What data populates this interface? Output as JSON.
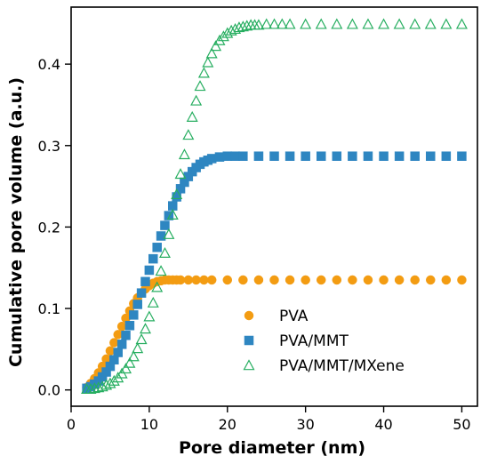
{
  "chart_data": {
    "type": "scatter",
    "title": "",
    "xlabel": "Pore diameter (nm)",
    "ylabel": "Cumulative pore volume (a.u.)",
    "xlim": [
      0,
      52
    ],
    "ylim": [
      -0.02,
      0.47
    ],
    "xticks": [
      0,
      10,
      20,
      30,
      40,
      50
    ],
    "yticks": [
      0.0,
      0.1,
      0.2,
      0.3,
      0.4
    ],
    "xtick_labels": [
      "0",
      "10",
      "20",
      "30",
      "40",
      "50"
    ],
    "ytick_labels": [
      "0.0",
      "0.1",
      "0.2",
      "0.3",
      "0.4"
    ],
    "grid": false,
    "legend_position": "lower-right",
    "series": [
      {
        "name": "PVA",
        "marker": "circle",
        "color": "#F39C12",
        "x": [
          2,
          2.5,
          3,
          3.5,
          4,
          4.5,
          5,
          5.5,
          6,
          6.5,
          7,
          7.5,
          8,
          8.5,
          9,
          9.5,
          10,
          10.5,
          11,
          11.5,
          12,
          12.5,
          13,
          13.5,
          14,
          15,
          16,
          17,
          18,
          20,
          22,
          24,
          26,
          28,
          30,
          32,
          34,
          36,
          38,
          40,
          42,
          44,
          46,
          48,
          50
        ],
        "y": [
          0.003,
          0.008,
          0.014,
          0.021,
          0.029,
          0.038,
          0.048,
          0.058,
          0.068,
          0.078,
          0.088,
          0.097,
          0.106,
          0.113,
          0.119,
          0.124,
          0.128,
          0.131,
          0.133,
          0.134,
          0.135,
          0.135,
          0.135,
          0.135,
          0.135,
          0.135,
          0.135,
          0.135,
          0.135,
          0.135,
          0.135,
          0.135,
          0.135,
          0.135,
          0.135,
          0.135,
          0.135,
          0.135,
          0.135,
          0.135,
          0.135,
          0.135,
          0.135,
          0.135,
          0.135
        ]
      },
      {
        "name": "PVA/MMT",
        "marker": "square",
        "color": "#2E86C1",
        "x": [
          2,
          2.5,
          3,
          3.5,
          4,
          4.5,
          5,
          5.5,
          6,
          6.5,
          7,
          7.5,
          8,
          8.5,
          9,
          9.5,
          10,
          10.5,
          11,
          11.5,
          12,
          12.5,
          13,
          13.5,
          14,
          14.5,
          15,
          15.5,
          16,
          16.5,
          17,
          17.5,
          18,
          19,
          20,
          21,
          22,
          24,
          26,
          28,
          30,
          32,
          34,
          36,
          38,
          40,
          42,
          44,
          46,
          48,
          50
        ],
        "y": [
          0.002,
          0.004,
          0.007,
          0.011,
          0.016,
          0.022,
          0.029,
          0.037,
          0.046,
          0.056,
          0.067,
          0.079,
          0.092,
          0.105,
          0.119,
          0.133,
          0.147,
          0.161,
          0.175,
          0.189,
          0.202,
          0.214,
          0.226,
          0.237,
          0.247,
          0.255,
          0.262,
          0.268,
          0.273,
          0.277,
          0.28,
          0.282,
          0.284,
          0.286,
          0.287,
          0.287,
          0.287,
          0.287,
          0.287,
          0.287,
          0.287,
          0.287,
          0.287,
          0.287,
          0.287,
          0.287,
          0.287,
          0.287,
          0.287,
          0.287,
          0.287
        ]
      },
      {
        "name": "PVA/MMT/MXene",
        "marker": "triangle-open",
        "color": "#27AE60",
        "x": [
          2,
          2.5,
          3,
          3.5,
          4,
          4.5,
          5,
          5.5,
          6,
          6.5,
          7,
          7.5,
          8,
          8.5,
          9,
          9.5,
          10,
          10.5,
          11,
          11.5,
          12,
          12.5,
          13,
          13.5,
          14,
          14.5,
          15,
          15.5,
          16,
          16.5,
          17,
          17.5,
          18,
          18.5,
          19,
          19.5,
          20,
          20.5,
          21,
          21.5,
          22,
          22.5,
          23,
          23.5,
          24,
          25,
          26,
          27,
          28,
          30,
          32,
          34,
          36,
          38,
          40,
          42,
          44,
          46,
          48,
          50
        ],
        "y": [
          0.001,
          0.001,
          0.002,
          0.003,
          0.004,
          0.006,
          0.008,
          0.011,
          0.015,
          0.02,
          0.026,
          0.033,
          0.041,
          0.051,
          0.062,
          0.075,
          0.09,
          0.107,
          0.126,
          0.146,
          0.168,
          0.191,
          0.215,
          0.24,
          0.265,
          0.289,
          0.313,
          0.335,
          0.355,
          0.373,
          0.389,
          0.402,
          0.413,
          0.422,
          0.429,
          0.434,
          0.438,
          0.441,
          0.443,
          0.445,
          0.446,
          0.447,
          0.448,
          0.448,
          0.448,
          0.449,
          0.449,
          0.449,
          0.449,
          0.449,
          0.449,
          0.449,
          0.449,
          0.449,
          0.449,
          0.449,
          0.449,
          0.449,
          0.449,
          0.449
        ]
      }
    ]
  }
}
